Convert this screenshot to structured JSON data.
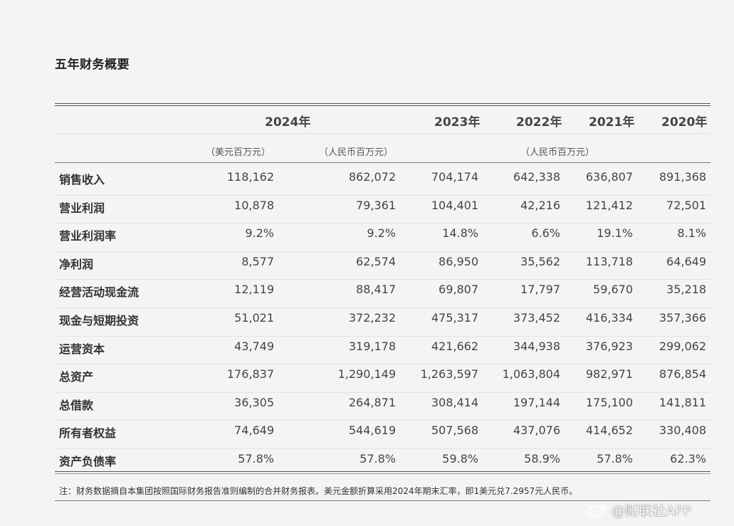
{
  "title": "五年财务概要",
  "header": {
    "years": [
      "2024年",
      "2023年",
      "2022年",
      "2021年",
      "2020年"
    ],
    "units": {
      "usd": "（美元百万元）",
      "rmb_2024": "（人民币百万元）",
      "rmb_others": "（人民币百万元）"
    }
  },
  "rows": [
    {
      "label": "销售收入",
      "values": [
        "118,162",
        "862,072",
        "704,174",
        "642,338",
        "636,807",
        "891,368"
      ]
    },
    {
      "label": "营业利润",
      "values": [
        "10,878",
        "79,361",
        "104,401",
        "42,216",
        "121,412",
        "72,501"
      ]
    },
    {
      "label": "营业利润率",
      "values": [
        "9.2%",
        "9.2%",
        "14.8%",
        "6.6%",
        "19.1%",
        "8.1%"
      ]
    },
    {
      "label": "净利润",
      "values": [
        "8,577",
        "62,574",
        "86,950",
        "35,562",
        "113,718",
        "64,649"
      ]
    },
    {
      "label": "经营活动现金流",
      "values": [
        "12,119",
        "88,417",
        "69,807",
        "17,797",
        "59,670",
        "35,218"
      ]
    },
    {
      "label": "现金与短期投资",
      "values": [
        "51,021",
        "372,232",
        "475,317",
        "373,452",
        "416,334",
        "357,366"
      ]
    },
    {
      "label": "运营资本",
      "values": [
        "43,749",
        "319,178",
        "421,662",
        "344,938",
        "376,923",
        "299,062"
      ]
    },
    {
      "label": "总资产",
      "values": [
        "176,837",
        "1,290,149",
        "1,263,597",
        "1,063,804",
        "982,971",
        "876,854"
      ]
    },
    {
      "label": "总借款",
      "values": [
        "36,305",
        "264,871",
        "308,414",
        "197,144",
        "175,100",
        "141,811"
      ]
    },
    {
      "label": "所有者权益",
      "values": [
        "74,649",
        "544,619",
        "507,568",
        "437,076",
        "414,652",
        "330,408"
      ]
    },
    {
      "label": "资产负债率",
      "values": [
        "57.8%",
        "57.8%",
        "59.8%",
        "58.9%",
        "57.8%",
        "62.3%"
      ]
    }
  ],
  "footnote": "注：财务数据摘自本集团按照国际财务报告准则编制的合并财务报表。美元金额折算采用2024年期末汇率，即1美元兑7.2957元人民币。",
  "watermark": "@财联社APP"
}
